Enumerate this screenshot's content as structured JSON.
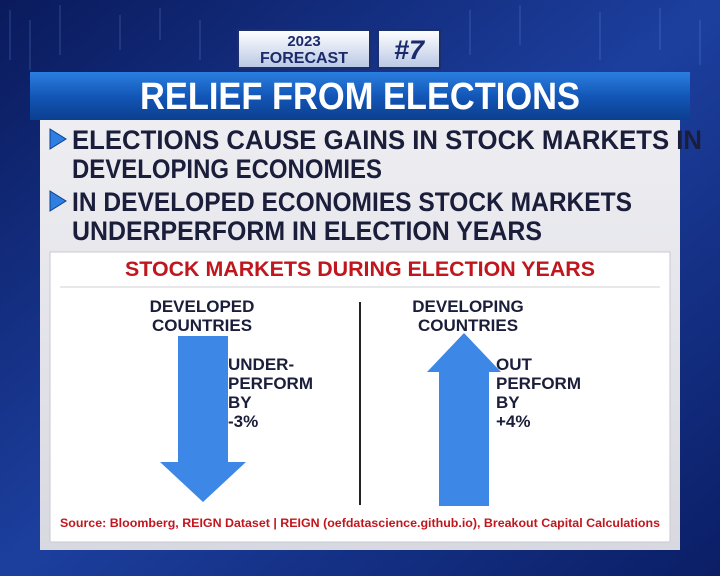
{
  "badge": {
    "year": "2023",
    "label": "FORECAST",
    "number": "#7"
  },
  "title": "RELIEF FROM ELECTIONS",
  "bullets": [
    [
      "ELECTIONS CAUSE GAINS IN STOCK MARKETS IN",
      "DEVELOPING ECONOMIES"
    ],
    [
      "IN DEVELOPED ECONOMIES STOCK MARKETS",
      "UNDERPERFORM IN ELECTION YEARS"
    ]
  ],
  "card": {
    "heading": "STOCK MARKETS DURING ELECTION YEARS",
    "left": {
      "group": [
        "DEVELOPED",
        "COUNTRIES"
      ],
      "note": [
        "UNDER-",
        "PERFORM",
        "BY",
        "-3%"
      ]
    },
    "right": {
      "group": [
        "DEVELOPING",
        "COUNTRIES"
      ],
      "note": [
        "OUT",
        "PERFORM",
        "BY",
        "+4%"
      ]
    },
    "source": "Source: Bloomberg, REIGN Dataset | REIGN (oefdatascience.github.io), Breakout Capital Calculations"
  }
}
